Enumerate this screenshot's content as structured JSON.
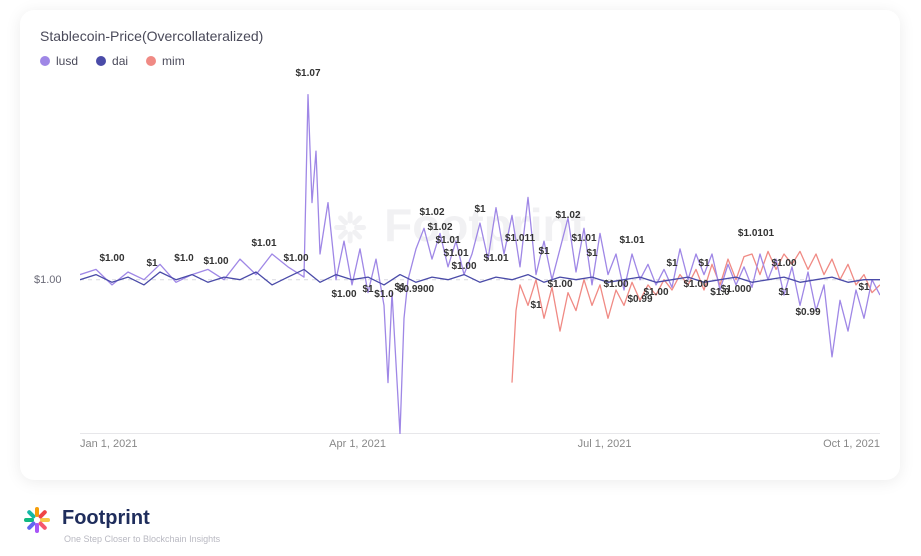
{
  "url": "https://www.footprint.network",
  "chart": {
    "title": "Stablecoin-Price(Overcollateralized)",
    "type": "line",
    "background": "#ffffff",
    "grid_color": "#d9d9e0",
    "y_ref_line": 1.0,
    "y_ref_label": "$1.00",
    "ylim": [
      0.94,
      1.08
    ],
    "x_ticks": [
      "Jan 1, 2021",
      "Apr 1, 2021",
      "Jul 1, 2021",
      "Oct 1, 2021"
    ],
    "legend": [
      {
        "name": "lusd",
        "color": "#9f87e6"
      },
      {
        "name": "dai",
        "color": "#4a4ba8"
      },
      {
        "name": "mim",
        "color": "#f08a84"
      }
    ],
    "series": {
      "lusd": {
        "color": "#9f87e6",
        "line_width": 1.3,
        "points": [
          [
            0.0,
            1.002
          ],
          [
            0.02,
            1.004
          ],
          [
            0.04,
            0.998
          ],
          [
            0.06,
            1.003
          ],
          [
            0.08,
            1.0
          ],
          [
            0.1,
            1.006
          ],
          [
            0.12,
            0.999
          ],
          [
            0.14,
            1.002
          ],
          [
            0.16,
            1.004
          ],
          [
            0.18,
            1.0
          ],
          [
            0.2,
            1.008
          ],
          [
            0.22,
            1.002
          ],
          [
            0.24,
            1.01
          ],
          [
            0.26,
            1.005
          ],
          [
            0.28,
            1.001
          ],
          [
            0.285,
            1.072
          ],
          [
            0.29,
            1.03
          ],
          [
            0.295,
            1.05
          ],
          [
            0.3,
            1.01
          ],
          [
            0.31,
            1.03
          ],
          [
            0.32,
            1.0
          ],
          [
            0.33,
            1.015
          ],
          [
            0.34,
            0.998
          ],
          [
            0.35,
            1.012
          ],
          [
            0.36,
            0.995
          ],
          [
            0.37,
            1.008
          ],
          [
            0.38,
            0.99
          ],
          [
            0.385,
            0.96
          ],
          [
            0.39,
            0.995
          ],
          [
            0.4,
            0.94
          ],
          [
            0.405,
            0.985
          ],
          [
            0.41,
            1.0
          ],
          [
            0.42,
            1.012
          ],
          [
            0.43,
            1.02
          ],
          [
            0.44,
            1.008
          ],
          [
            0.45,
            1.018
          ],
          [
            0.46,
            1.005
          ],
          [
            0.47,
            1.015
          ],
          [
            0.48,
            1.002
          ],
          [
            0.49,
            1.01
          ],
          [
            0.5,
            1.022
          ],
          [
            0.51,
            1.008
          ],
          [
            0.52,
            1.028
          ],
          [
            0.53,
            1.01
          ],
          [
            0.54,
            1.025
          ],
          [
            0.55,
            1.005
          ],
          [
            0.56,
            1.032
          ],
          [
            0.57,
            1.002
          ],
          [
            0.58,
            1.015
          ],
          [
            0.59,
            1.0
          ],
          [
            0.6,
            1.012
          ],
          [
            0.61,
            1.024
          ],
          [
            0.62,
            1.003
          ],
          [
            0.63,
            1.02
          ],
          [
            0.64,
            0.998
          ],
          [
            0.65,
            1.018
          ],
          [
            0.66,
            1.002
          ],
          [
            0.67,
            1.01
          ],
          [
            0.68,
            0.996
          ],
          [
            0.69,
            1.01
          ],
          [
            0.7,
            1.0
          ],
          [
            0.71,
            1.006
          ],
          [
            0.72,
            0.998
          ],
          [
            0.73,
            1.004
          ],
          [
            0.74,
            0.997
          ],
          [
            0.75,
            1.012
          ],
          [
            0.76,
            1.0
          ],
          [
            0.77,
            1.01
          ],
          [
            0.78,
            1.002
          ],
          [
            0.79,
            1.01
          ],
          [
            0.8,
            0.996
          ],
          [
            0.81,
            1.006
          ],
          [
            0.82,
            0.998
          ],
          [
            0.83,
            1.005
          ],
          [
            0.84,
            0.997
          ],
          [
            0.85,
            1.01
          ],
          [
            0.86,
            1.0
          ],
          [
            0.87,
            1.008
          ],
          [
            0.88,
            0.994
          ],
          [
            0.89,
            1.005
          ],
          [
            0.9,
            0.99
          ],
          [
            0.91,
            1.003
          ],
          [
            0.92,
            0.988
          ],
          [
            0.93,
            0.998
          ],
          [
            0.94,
            0.97
          ],
          [
            0.95,
            0.992
          ],
          [
            0.96,
            0.98
          ],
          [
            0.97,
            0.996
          ],
          [
            0.98,
            0.985
          ],
          [
            0.99,
            1.0
          ],
          [
            1.0,
            0.994
          ]
        ]
      },
      "dai": {
        "color": "#4a4ba8",
        "line_width": 1.3,
        "points": [
          [
            0.0,
            1.0
          ],
          [
            0.02,
            1.002
          ],
          [
            0.04,
            0.999
          ],
          [
            0.06,
            1.001
          ],
          [
            0.08,
            0.998
          ],
          [
            0.1,
            1.003
          ],
          [
            0.12,
            1.0
          ],
          [
            0.14,
            1.002
          ],
          [
            0.16,
            0.999
          ],
          [
            0.18,
            1.001
          ],
          [
            0.2,
            1.0
          ],
          [
            0.22,
            1.003
          ],
          [
            0.24,
            0.998
          ],
          [
            0.26,
            1.001
          ],
          [
            0.28,
            1.004
          ],
          [
            0.3,
            0.999
          ],
          [
            0.32,
            1.002
          ],
          [
            0.34,
            1.0
          ],
          [
            0.36,
            1.001
          ],
          [
            0.38,
            0.998
          ],
          [
            0.4,
            1.002
          ],
          [
            0.42,
            0.999
          ],
          [
            0.44,
            1.001
          ],
          [
            0.46,
            1.0
          ],
          [
            0.48,
            1.002
          ],
          [
            0.5,
            0.999
          ],
          [
            0.52,
            1.001
          ],
          [
            0.54,
            1.0
          ],
          [
            0.56,
            1.002
          ],
          [
            0.58,
            0.999
          ],
          [
            0.6,
            1.001
          ],
          [
            0.62,
            1.0
          ],
          [
            0.64,
            1.001
          ],
          [
            0.66,
            0.999
          ],
          [
            0.68,
            1.0
          ],
          [
            0.7,
            1.001
          ],
          [
            0.72,
            0.999
          ],
          [
            0.74,
            1.0
          ],
          [
            0.76,
            1.001
          ],
          [
            0.78,
            0.999
          ],
          [
            0.8,
            1.0
          ],
          [
            0.82,
            1.001
          ],
          [
            0.84,
            0.999
          ],
          [
            0.86,
            1.0
          ],
          [
            0.88,
            1.001
          ],
          [
            0.9,
            0.999
          ],
          [
            0.92,
            1.0
          ],
          [
            0.94,
            1.001
          ],
          [
            0.96,
            0.999
          ],
          [
            0.98,
            1.0
          ],
          [
            1.0,
            1.0
          ]
        ]
      },
      "mim": {
        "color": "#f08a84",
        "line_width": 1.3,
        "points": [
          [
            0.54,
            0.96
          ],
          [
            0.545,
            0.988
          ],
          [
            0.55,
            0.998
          ],
          [
            0.56,
            0.99
          ],
          [
            0.57,
            1.0
          ],
          [
            0.58,
            0.985
          ],
          [
            0.59,
            0.997
          ],
          [
            0.6,
            0.98
          ],
          [
            0.61,
            0.995
          ],
          [
            0.62,
            0.988
          ],
          [
            0.63,
            1.0
          ],
          [
            0.64,
            0.99
          ],
          [
            0.65,
            0.998
          ],
          [
            0.66,
            0.985
          ],
          [
            0.67,
            0.996
          ],
          [
            0.68,
            0.99
          ],
          [
            0.69,
            0.999
          ],
          [
            0.7,
            0.992
          ],
          [
            0.71,
            0.998
          ],
          [
            0.72,
            0.994
          ],
          [
            0.73,
            1.0
          ],
          [
            0.74,
            0.996
          ],
          [
            0.75,
            1.002
          ],
          [
            0.76,
            0.998
          ],
          [
            0.77,
            1.004
          ],
          [
            0.78,
            0.996
          ],
          [
            0.79,
            1.006
          ],
          [
            0.8,
            0.998
          ],
          [
            0.81,
            1.008
          ],
          [
            0.82,
            1.0
          ],
          [
            0.83,
            1.009
          ],
          [
            0.84,
            1.01
          ],
          [
            0.85,
            1.002
          ],
          [
            0.86,
            1.011
          ],
          [
            0.87,
            1.004
          ],
          [
            0.88,
            1.01
          ],
          [
            0.89,
            1.006
          ],
          [
            0.9,
            1.011
          ],
          [
            0.91,
            1.004
          ],
          [
            0.92,
            1.01
          ],
          [
            0.93,
            1.002
          ],
          [
            0.94,
            1.008
          ],
          [
            0.95,
            1.0
          ],
          [
            0.96,
            1.006
          ],
          [
            0.97,
            0.998
          ],
          [
            0.98,
            1.002
          ],
          [
            0.99,
            0.995
          ],
          [
            1.0,
            0.998
          ]
        ]
      }
    },
    "data_labels": [
      {
        "x": 0.04,
        "y": 1.006,
        "t": "$1.00"
      },
      {
        "x": 0.09,
        "y": 1.004,
        "t": "$1"
      },
      {
        "x": 0.13,
        "y": 1.006,
        "t": "$1.0"
      },
      {
        "x": 0.17,
        "y": 1.005,
        "t": "$1.00"
      },
      {
        "x": 0.23,
        "y": 1.012,
        "t": "$1.01"
      },
      {
        "x": 0.27,
        "y": 1.006,
        "t": "$1.00"
      },
      {
        "x": 0.285,
        "y": 1.078,
        "t": "$1.07"
      },
      {
        "x": 0.33,
        "y": 0.992,
        "t": "$1.00"
      },
      {
        "x": 0.36,
        "y": 0.994,
        "t": "$1"
      },
      {
        "x": 0.38,
        "y": 0.992,
        "t": "$1.0"
      },
      {
        "x": 0.4,
        "y": 0.995,
        "t": "$1"
      },
      {
        "x": 0.42,
        "y": 0.994,
        "t": "$0.9900"
      },
      {
        "x": 0.44,
        "y": 1.024,
        "t": "$1.02"
      },
      {
        "x": 0.45,
        "y": 1.018,
        "t": "$1.02"
      },
      {
        "x": 0.46,
        "y": 1.013,
        "t": "$1.01"
      },
      {
        "x": 0.47,
        "y": 1.008,
        "t": "$1.01"
      },
      {
        "x": 0.48,
        "y": 1.003,
        "t": "$1.00"
      },
      {
        "x": 0.5,
        "y": 1.025,
        "t": "$1"
      },
      {
        "x": 0.52,
        "y": 1.006,
        "t": "$1.01"
      },
      {
        "x": 0.55,
        "y": 1.014,
        "t": "$1.011"
      },
      {
        "x": 0.57,
        "y": 0.988,
        "t": "$1"
      },
      {
        "x": 0.58,
        "y": 1.009,
        "t": "$1"
      },
      {
        "x": 0.6,
        "y": 0.996,
        "t": "$1.00"
      },
      {
        "x": 0.61,
        "y": 1.023,
        "t": "$1.02"
      },
      {
        "x": 0.63,
        "y": 1.014,
        "t": "$1.01"
      },
      {
        "x": 0.64,
        "y": 1.008,
        "t": "$1"
      },
      {
        "x": 0.67,
        "y": 0.996,
        "t": "$1.00"
      },
      {
        "x": 0.69,
        "y": 1.013,
        "t": "$1.01"
      },
      {
        "x": 0.7,
        "y": 0.99,
        "t": "$0.99"
      },
      {
        "x": 0.72,
        "y": 0.993,
        "t": "$1.00"
      },
      {
        "x": 0.74,
        "y": 1.004,
        "t": "$1"
      },
      {
        "x": 0.77,
        "y": 0.996,
        "t": "$1.00"
      },
      {
        "x": 0.78,
        "y": 1.004,
        "t": "$1"
      },
      {
        "x": 0.8,
        "y": 0.993,
        "t": "$1.0"
      },
      {
        "x": 0.82,
        "y": 0.994,
        "t": "$1.000"
      },
      {
        "x": 0.845,
        "y": 1.016,
        "t": "$1.0101"
      },
      {
        "x": 0.88,
        "y": 0.993,
        "t": "$1"
      },
      {
        "x": 0.88,
        "y": 1.004,
        "t": "$1.00"
      },
      {
        "x": 0.91,
        "y": 0.985,
        "t": "$0.99"
      },
      {
        "x": 0.98,
        "y": 0.995,
        "t": "$1"
      }
    ]
  },
  "footer": {
    "brand": "Footprint",
    "tagline": "One Step Closer to Blockchain Insights",
    "burst_colors": [
      "#f7c948",
      "#f5576c",
      "#a855f7",
      "#6366f1",
      "#10b981",
      "#14b8a6",
      "#f59e0b",
      "#ef4444"
    ]
  }
}
